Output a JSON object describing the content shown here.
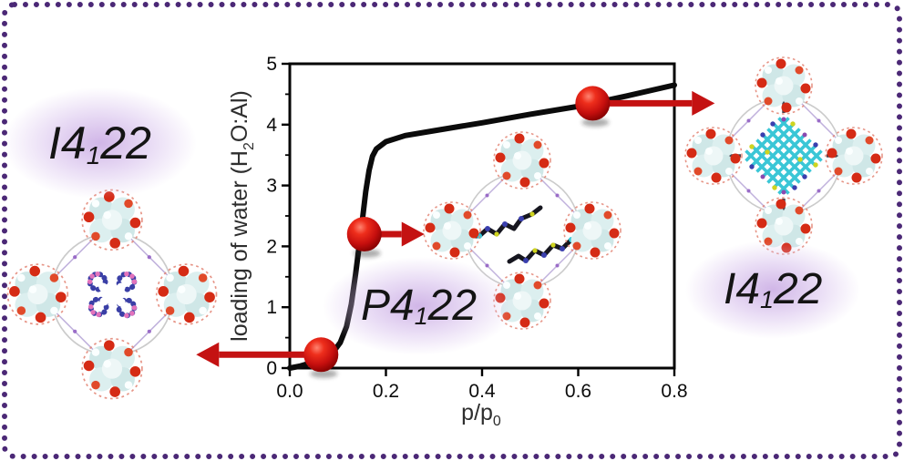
{
  "canvas": {
    "background": "#ffffff",
    "border_color": "#4b2876"
  },
  "labels": {
    "left_phase": {
      "p1": "I4",
      "sub": "1",
      "p2": "22"
    },
    "middle_phase": {
      "p1": "P4",
      "sub": "1",
      "p2": "22"
    },
    "right_phase": {
      "p1": "I4",
      "sub": "1",
      "p2": "22"
    }
  },
  "chart_data": {
    "type": "line",
    "title": "",
    "xlabel_parts": {
      "p1": "p/p",
      "sub": "0"
    },
    "ylabel_parts": {
      "p1": "loading of water (H",
      "sub": "2",
      "p2": "O:Al)"
    },
    "xlim": [
      0,
      0.8
    ],
    "ylim": [
      0,
      5
    ],
    "grid": false,
    "xticks": {
      "values": [
        0,
        0.2,
        0.4,
        0.6,
        0.8
      ],
      "labels": [
        "0.0",
        "0.2",
        "0.4",
        "0.6",
        "0.8"
      ]
    },
    "yticks": {
      "values": [
        0,
        1,
        2,
        3,
        4,
        5
      ],
      "labels": [
        "0",
        "1",
        "2",
        "3",
        "4",
        "5"
      ],
      "minor": [
        0.5,
        1.5,
        2.5,
        3.5,
        4.5
      ]
    },
    "series": [
      {
        "name": "water adsorption isotherm",
        "color": "#0b0b0b",
        "points": [
          [
            0,
            0
          ],
          [
            0.02,
            0.03
          ],
          [
            0.05,
            0.1
          ],
          [
            0.07,
            0.16
          ],
          [
            0.09,
            0.26
          ],
          [
            0.105,
            0.42
          ],
          [
            0.118,
            0.68
          ],
          [
            0.128,
            1.05
          ],
          [
            0.137,
            1.55
          ],
          [
            0.145,
            2.05
          ],
          [
            0.152,
            2.5
          ],
          [
            0.158,
            2.9
          ],
          [
            0.165,
            3.25
          ],
          [
            0.172,
            3.48
          ],
          [
            0.18,
            3.6
          ],
          [
            0.2,
            3.72
          ],
          [
            0.24,
            3.82
          ],
          [
            0.3,
            3.9
          ],
          [
            0.4,
            4.03
          ],
          [
            0.5,
            4.17
          ],
          [
            0.6,
            4.3
          ],
          [
            0.7,
            4.47
          ],
          [
            0.8,
            4.65
          ]
        ]
      }
    ],
    "markers": [
      {
        "x": 0.065,
        "y": 0.22,
        "arrow_dir": "left",
        "arrow_len": 137
      },
      {
        "x": 0.155,
        "y": 2.2,
        "arrow_dir": "right",
        "arrow_len": 66
      },
      {
        "x": 0.63,
        "y": 4.35,
        "arrow_dir": "right",
        "arrow_len": 134
      }
    ],
    "marker_color": "#d01515",
    "arrow_color": "#c41212"
  }
}
